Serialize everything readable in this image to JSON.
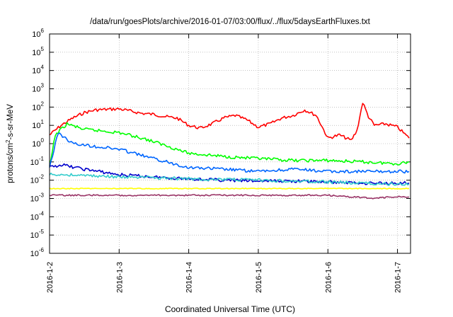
{
  "chart_data": {
    "type": "line",
    "title": "/data/run/goesPlots/archive/2016-01-07/03:00/flux/../flux/5daysEarthFluxes.txt",
    "xlabel": "Coordinated Universal Time (UTC)",
    "ylabel": "protons/cm2-s-sr-MeV",
    "yscale": "log",
    "ylim": [
      1e-06,
      1000000.0
    ],
    "xlim": [
      "2016-01-02 00:00",
      "2016-01-07 04:30"
    ],
    "x_ticks": [
      "2016-1-2",
      "2016-1-3",
      "2016-1-4",
      "2016-1-5",
      "2016-1-6",
      "2016-1-7"
    ],
    "y_ticks": [
      {
        "mant": "10",
        "exp": "6"
      },
      {
        "mant": "10",
        "exp": "5"
      },
      {
        "mant": "10",
        "exp": "4"
      },
      {
        "mant": "10",
        "exp": "3"
      },
      {
        "mant": "10",
        "exp": "2"
      },
      {
        "mant": "10",
        "exp": "1"
      },
      {
        "mant": "10",
        "exp": "0"
      },
      {
        "mant": "10",
        "exp": "-1"
      },
      {
        "mant": "10",
        "exp": "-2"
      },
      {
        "mant": "10",
        "exp": "-3"
      },
      {
        "mant": "10",
        "exp": "-4"
      },
      {
        "mant": "10",
        "exp": "-5"
      },
      {
        "mant": "10",
        "exp": "-6"
      }
    ],
    "grid": true,
    "series": [
      {
        "color": "#ff0000",
        "points": [
          [
            "2016-01-02 00:00",
            3
          ],
          [
            "2016-01-02 04:00",
            10
          ],
          [
            "2016-01-02 08:00",
            25
          ],
          [
            "2016-01-02 12:00",
            50
          ],
          [
            "2016-01-02 16:00",
            70
          ],
          [
            "2016-01-02 20:00",
            75
          ],
          [
            "2016-01-03 00:00",
            80
          ],
          [
            "2016-01-03 04:00",
            60
          ],
          [
            "2016-01-03 08:00",
            45
          ],
          [
            "2016-01-03 12:00",
            40
          ],
          [
            "2016-01-03 16:00",
            30
          ],
          [
            "2016-01-03 20:00",
            25
          ],
          [
            "2016-01-04 00:00",
            10
          ],
          [
            "2016-01-04 04:00",
            7
          ],
          [
            "2016-01-04 08:00",
            12
          ],
          [
            "2016-01-04 12:00",
            25
          ],
          [
            "2016-01-04 16:00",
            35
          ],
          [
            "2016-01-04 20:00",
            20
          ],
          [
            "2016-01-05 00:00",
            8
          ],
          [
            "2016-01-05 04:00",
            12
          ],
          [
            "2016-01-05 08:00",
            25
          ],
          [
            "2016-01-05 12:00",
            35
          ],
          [
            "2016-01-05 16:00",
            70
          ],
          [
            "2016-01-05 20:00",
            35
          ],
          [
            "2016-01-06 00:00",
            2
          ],
          [
            "2016-01-06 04:00",
            3
          ],
          [
            "2016-01-06 08:00",
            1.5
          ],
          [
            "2016-01-06 10:00",
            5
          ],
          [
            "2016-01-06 12:00",
            180
          ],
          [
            "2016-01-06 14:00",
            30
          ],
          [
            "2016-01-06 16:00",
            10
          ],
          [
            "2016-01-06 20:00",
            12
          ],
          [
            "2016-01-07 00:00",
            8
          ],
          [
            "2016-01-07 04:00",
            2
          ]
        ]
      },
      {
        "color": "#00ff00",
        "points": [
          [
            "2016-01-02 00:00",
            0.05
          ],
          [
            "2016-01-02 02:00",
            3
          ],
          [
            "2016-01-02 06:00",
            12
          ],
          [
            "2016-01-02 12:00",
            6
          ],
          [
            "2016-01-02 18:00",
            5
          ],
          [
            "2016-01-03 00:00",
            4
          ],
          [
            "2016-01-03 08:00",
            2
          ],
          [
            "2016-01-03 16:00",
            0.8
          ],
          [
            "2016-01-04 00:00",
            0.3
          ],
          [
            "2016-01-04 12:00",
            0.2
          ],
          [
            "2016-01-05 00:00",
            0.15
          ],
          [
            "2016-01-05 12:00",
            0.12
          ],
          [
            "2016-01-06 00:00",
            0.12
          ],
          [
            "2016-01-06 12:00",
            0.1
          ],
          [
            "2016-01-07 00:00",
            0.08
          ],
          [
            "2016-01-07 04:00",
            0.1
          ]
        ]
      },
      {
        "color": "#0066ff",
        "points": [
          [
            "2016-01-02 00:00",
            0.05
          ],
          [
            "2016-01-02 03:00",
            4
          ],
          [
            "2016-01-02 08:00",
            1
          ],
          [
            "2016-01-02 16:00",
            0.7
          ],
          [
            "2016-01-03 00:00",
            0.5
          ],
          [
            "2016-01-03 12:00",
            0.15
          ],
          [
            "2016-01-04 00:00",
            0.05
          ],
          [
            "2016-01-04 12:00",
            0.04
          ],
          [
            "2016-01-05 00:00",
            0.03
          ],
          [
            "2016-01-05 12:00",
            0.04
          ],
          [
            "2016-01-06 00:00",
            0.03
          ],
          [
            "2016-01-06 12:00",
            0.03
          ],
          [
            "2016-01-07 00:00",
            0.03
          ],
          [
            "2016-01-07 04:00",
            0.03
          ]
        ]
      },
      {
        "color": "#0000cc",
        "points": [
          [
            "2016-01-02 00:00",
            0.05
          ],
          [
            "2016-01-02 04:00",
            0.07
          ],
          [
            "2016-01-02 12:00",
            0.04
          ],
          [
            "2016-01-03 00:00",
            0.02
          ],
          [
            "2016-01-03 12:00",
            0.015
          ],
          [
            "2016-01-04 00:00",
            0.012
          ],
          [
            "2016-01-04 12:00",
            0.01
          ],
          [
            "2016-01-05 00:00",
            0.009
          ],
          [
            "2016-01-05 12:00",
            0.009
          ],
          [
            "2016-01-06 00:00",
            0.008
          ],
          [
            "2016-01-06 12:00",
            0.007
          ],
          [
            "2016-01-07 00:00",
            0.007
          ],
          [
            "2016-01-07 04:00",
            0.007
          ]
        ]
      },
      {
        "color": "#33cccc",
        "points": [
          [
            "2016-01-02 00:00",
            0.02
          ],
          [
            "2016-01-02 06:00",
            0.02
          ],
          [
            "2016-01-03 00:00",
            0.015
          ],
          [
            "2016-01-04 00:00",
            0.012
          ],
          [
            "2016-01-05 00:00",
            0.01
          ],
          [
            "2016-01-06 00:00",
            0.008
          ],
          [
            "2016-01-07 00:00",
            0.006
          ],
          [
            "2016-01-07 04:00",
            0.006
          ]
        ]
      },
      {
        "color": "#ffff00",
        "points": [
          [
            "2016-01-02 00:00",
            0.0035
          ],
          [
            "2016-01-03 00:00",
            0.0035
          ],
          [
            "2016-01-04 00:00",
            0.0035
          ],
          [
            "2016-01-05 00:00",
            0.0035
          ],
          [
            "2016-01-06 00:00",
            0.0035
          ],
          [
            "2016-01-07 00:00",
            0.0035
          ],
          [
            "2016-01-07 04:00",
            0.0035
          ]
        ]
      },
      {
        "color": "#993366",
        "points": [
          [
            "2016-01-02 00:00",
            0.0015
          ],
          [
            "2016-01-03 00:00",
            0.0015
          ],
          [
            "2016-01-04 00:00",
            0.0015
          ],
          [
            "2016-01-05 00:00",
            0.0015
          ],
          [
            "2016-01-06 00:00",
            0.0015
          ],
          [
            "2016-01-06 16:00",
            0.001
          ],
          [
            "2016-01-07 00:00",
            0.0013
          ],
          [
            "2016-01-07 04:00",
            0.0012
          ]
        ]
      }
    ]
  }
}
